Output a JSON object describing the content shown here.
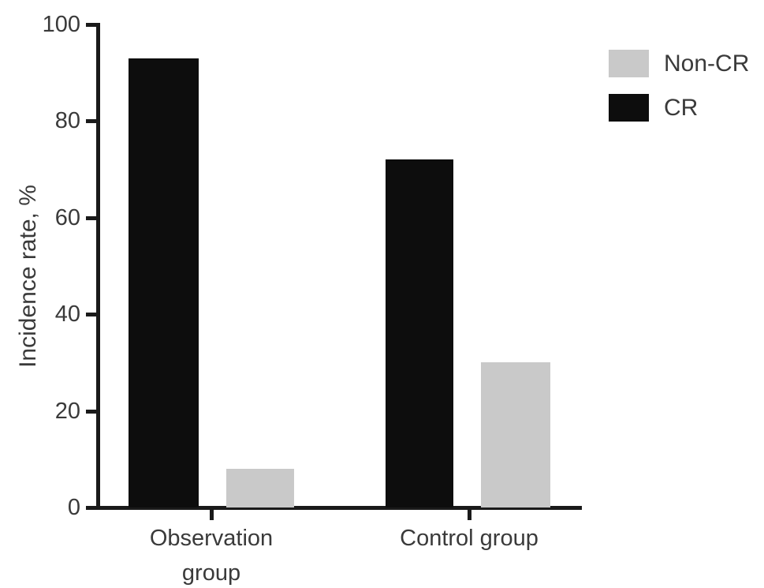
{
  "chart_data": {
    "type": "bar",
    "title": "",
    "xlabel": "",
    "ylabel": "Incidence rate, %",
    "categories": [
      "Observation group",
      "Control group"
    ],
    "series": [
      {
        "name": "Non-CR",
        "color": "#c9c9c9",
        "values": [
          8,
          30
        ]
      },
      {
        "name": "CR",
        "color": "#0d0d0d",
        "values": [
          93,
          72
        ]
      }
    ],
    "ylim": [
      0,
      100
    ],
    "yticks": [
      100,
      80,
      60,
      40,
      20,
      0
    ],
    "grid": false,
    "legend_position": "top-right",
    "bar_order_in_group": [
      "CR",
      "Non-CR"
    ],
    "axis_color": "#1a1a1a",
    "text_color": "#3a3a3a"
  }
}
